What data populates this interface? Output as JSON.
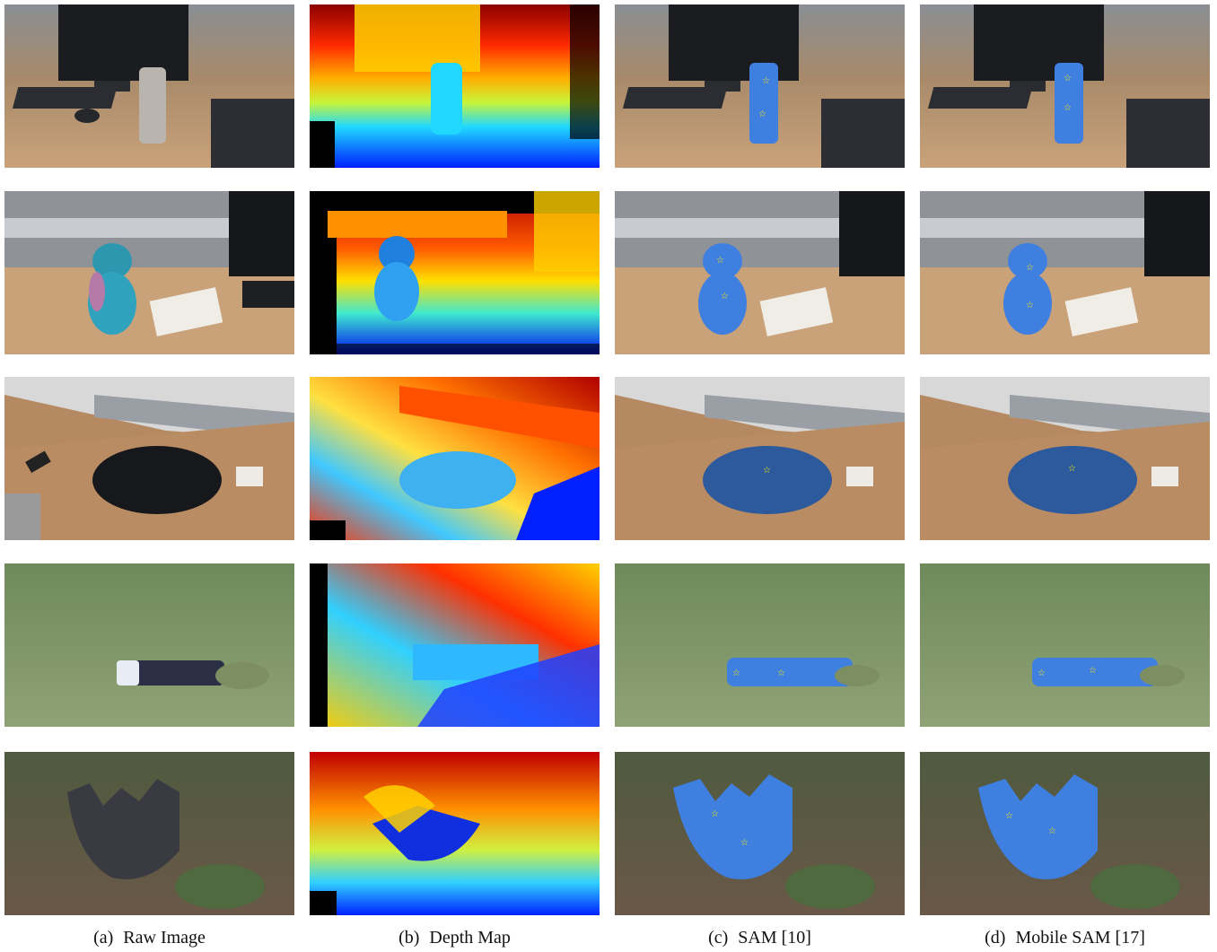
{
  "figure": {
    "columns": [
      {
        "tag": "(a)",
        "label": "Raw Image"
      },
      {
        "tag": "(b)",
        "label": "Depth Map"
      },
      {
        "tag": "(c)",
        "label": "SAM [10]"
      },
      {
        "tag": "(d)",
        "label": "Mobile SAM [17]"
      }
    ],
    "rows": [
      "desk-thermos",
      "desk-toy-figure",
      "desk-backpack",
      "grass-umbrella",
      "grass-bowl"
    ],
    "mask_color": "#3f7fe0"
  }
}
